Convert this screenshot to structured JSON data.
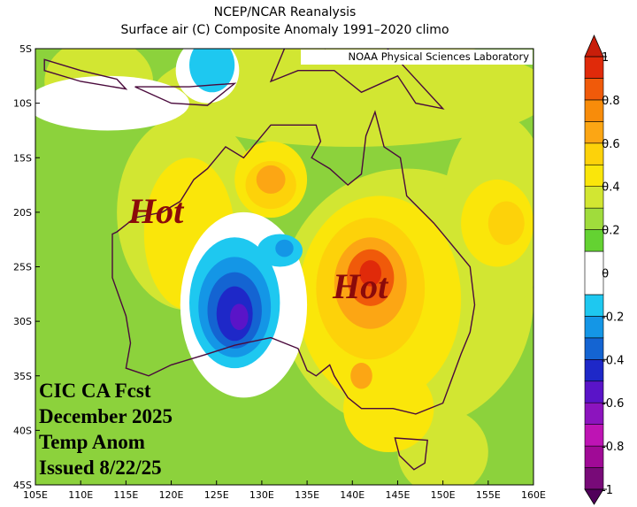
{
  "map_data": {
    "title": "NCEP/NCAR Reanalysis",
    "subtitle": "Surface air (C) Composite Anomaly 1991–2020 climo",
    "credit": "NOAA Physical Sciences Laboratory",
    "lat_ticks": [
      {
        "value": -5,
        "label": "5S"
      },
      {
        "value": -10,
        "label": "10S"
      },
      {
        "value": -15,
        "label": "15S"
      },
      {
        "value": -20,
        "label": "20S"
      },
      {
        "value": -25,
        "label": "25S"
      },
      {
        "value": -30,
        "label": "30S"
      },
      {
        "value": -35,
        "label": "35S"
      },
      {
        "value": -40,
        "label": "40S"
      },
      {
        "value": -45,
        "label": "45S"
      }
    ],
    "lon_ticks": [
      {
        "value": 105,
        "label": "105E"
      },
      {
        "value": 110,
        "label": "110E"
      },
      {
        "value": 115,
        "label": "115E"
      },
      {
        "value": 120,
        "label": "120E"
      },
      {
        "value": 125,
        "label": "125E"
      },
      {
        "value": 130,
        "label": "130E"
      },
      {
        "value": 135,
        "label": "135E"
      },
      {
        "value": 140,
        "label": "140E"
      },
      {
        "value": 145,
        "label": "145E"
      },
      {
        "value": 150,
        "label": "150E"
      },
      {
        "value": 155,
        "label": "155E"
      },
      {
        "value": 160,
        "label": "160E"
      }
    ],
    "colorbar": {
      "levels": [
        -1,
        -0.9,
        -0.8,
        -0.7,
        -0.6,
        -0.5,
        -0.4,
        -0.3,
        -0.2,
        -0.1,
        0.1,
        0.2,
        0.3,
        0.4,
        0.5,
        0.6,
        0.7,
        0.8,
        0.9,
        1
      ],
      "colors": [
        "#780a78",
        "#a00a96",
        "#be14b4",
        "#8c14be",
        "#5a14c8",
        "#1e28c8",
        "#1464d2",
        "#1496e6",
        "#1ec8f0",
        "#ffffff",
        "#64d232",
        "#a0dc3c",
        "#d2e632",
        "#fae60a",
        "#fdd20a",
        "#fca614",
        "#f88c0a",
        "#f05a0a",
        "#e02a0a"
      ],
      "under_color": "#50005a",
      "over_color": "#c81e0a",
      "ticks": [
        1,
        0.8,
        0.6,
        0.4,
        0.2,
        0,
        -0.2,
        -0.4,
        -0.6,
        -0.8,
        -1
      ]
    },
    "annotations": [
      "Hot",
      "Hot"
    ],
    "forecast_label": [
      "CIC CA Fcst",
      "December 2025",
      "Temp Anom",
      "Issued 8/22/25"
    ]
  }
}
